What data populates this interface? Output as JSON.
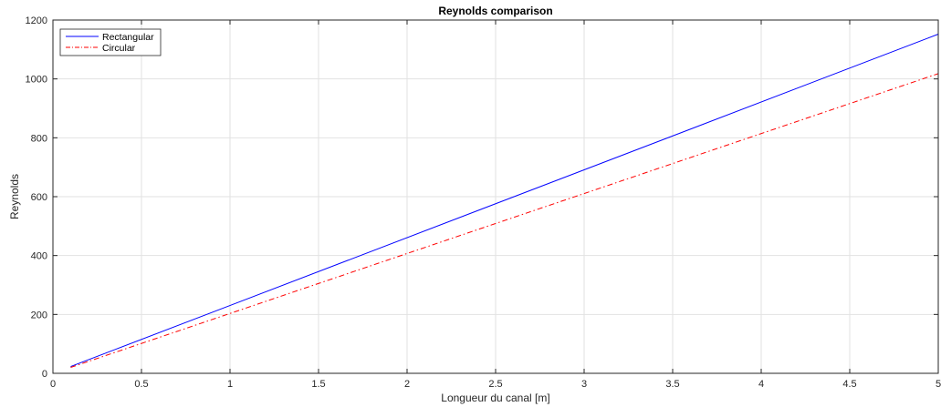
{
  "chart_data": {
    "type": "line",
    "title": "Reynolds comparison",
    "xlabel": "Longueur du canal [m]",
    "ylabel": "Reynolds",
    "xlim": [
      0,
      5
    ],
    "ylim": [
      0,
      1200
    ],
    "xticks": [
      0,
      0.5,
      1,
      1.5,
      2,
      2.5,
      3,
      3.5,
      4,
      4.5,
      5
    ],
    "xtick_labels": [
      "0",
      "0.5",
      "1",
      "1.5",
      "2",
      "2.5",
      "3",
      "3.5",
      "4",
      "4.5",
      "5"
    ],
    "yticks": [
      0,
      200,
      400,
      600,
      800,
      1000,
      1200
    ],
    "ytick_labels": [
      "0",
      "200",
      "400",
      "600",
      "800",
      "1000",
      "1200"
    ],
    "grid": true,
    "legend_position": "top-left",
    "series": [
      {
        "name": "Rectangular",
        "color": "#0000ff",
        "style": "solid",
        "x": [
          0.1,
          5
        ],
        "y": [
          23,
          1152
        ]
      },
      {
        "name": "Circular",
        "color": "#ff0000",
        "style": "dash-dot",
        "x": [
          0.1,
          5
        ],
        "y": [
          20,
          1018
        ]
      }
    ]
  }
}
